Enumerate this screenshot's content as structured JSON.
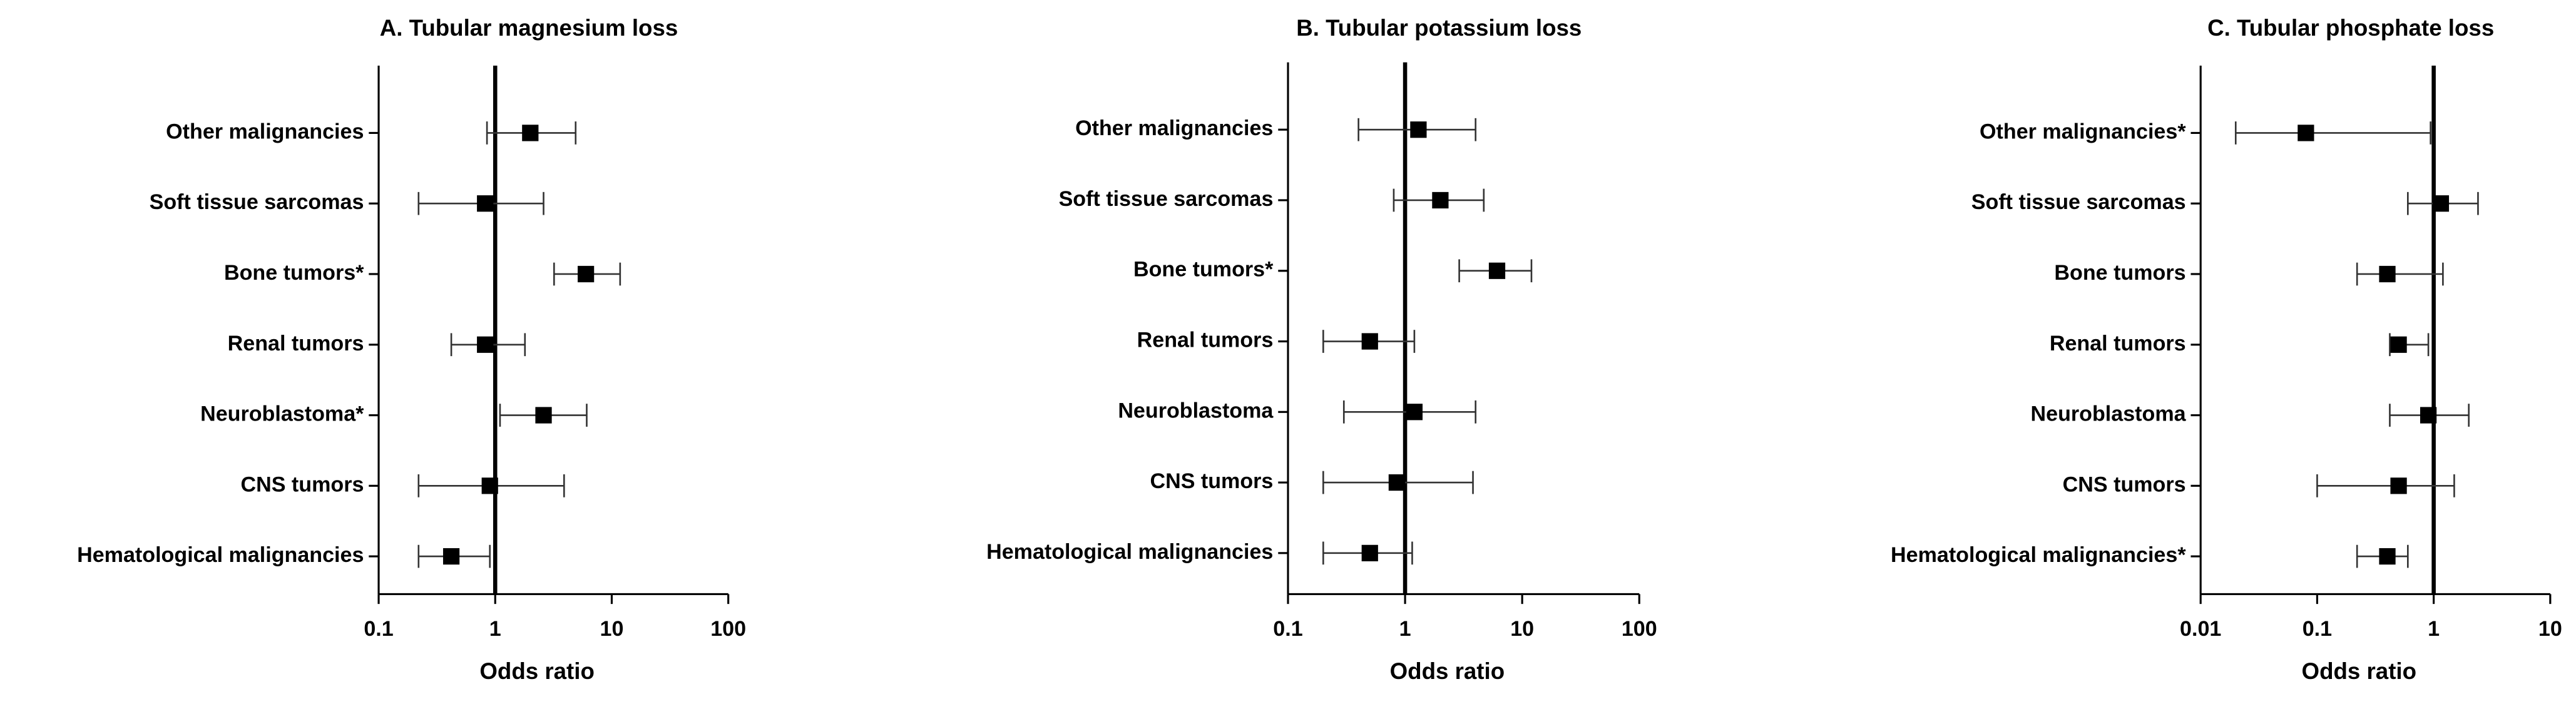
{
  "chart_data": [
    {
      "type": "forest",
      "title": "A. Tubular magnesium loss",
      "xlabel": "Odds ratio",
      "categories": [
        "Other malignancies",
        "Soft tissue sarcomas",
        "Bone tumors*",
        "Renal tumors",
        "Neuroblastoma*",
        "CNS tumors",
        "Hematological malignancies"
      ],
      "values": [
        2.0,
        0.82,
        6.0,
        0.82,
        2.6,
        0.9,
        0.42
      ],
      "lower": [
        0.85,
        0.22,
        3.2,
        0.42,
        1.1,
        0.22,
        0.22
      ],
      "upper": [
        4.9,
        2.6,
        11.8,
        1.8,
        6.1,
        3.9,
        0.9
      ],
      "xlim": [
        0.1,
        100
      ],
      "xticks": [
        0.1,
        1,
        10,
        100
      ],
      "log_x": true,
      "reference_line": 1,
      "color": "#000000"
    },
    {
      "type": "forest",
      "title": "B. Tubular potassium loss",
      "xlabel": "Odds ratio",
      "categories": [
        "Other malignancies",
        "Soft tissue sarcomas",
        "Bone tumors*",
        "Renal tumors",
        "Neuroblastoma",
        "CNS tumors",
        "Hematological malignancies"
      ],
      "values": [
        1.3,
        2.0,
        6.1,
        0.5,
        1.2,
        0.85,
        0.5
      ],
      "lower": [
        0.4,
        0.8,
        2.9,
        0.2,
        0.3,
        0.2,
        0.2
      ],
      "upper": [
        4.0,
        4.7,
        12,
        1.2,
        4.0,
        3.8,
        1.15
      ],
      "xlim": [
        0.1,
        100
      ],
      "xticks": [
        0.1,
        1,
        10,
        100
      ],
      "log_x": true,
      "reference_line": 1,
      "color": "#000000"
    },
    {
      "type": "forest",
      "title": "C. Tubular phosphate loss",
      "xlabel": "Odds ratio",
      "categories": [
        "Other malignancies*",
        "Soft tissue sarcomas",
        "Bone tumors",
        "Renal tumors",
        "Neuroblastoma",
        "CNS tumors",
        "Hematological malignancies*"
      ],
      "values": [
        0.08,
        1.15,
        0.4,
        0.5,
        0.9,
        0.5,
        0.4
      ],
      "lower": [
        0.02,
        0.6,
        0.22,
        0.42,
        0.42,
        0.1,
        0.22
      ],
      "upper": [
        0.94,
        2.4,
        1.2,
        0.9,
        2.0,
        1.5,
        0.6
      ],
      "xlim": [
        0.01,
        10
      ],
      "xticks": [
        0.01,
        0.1,
        1,
        10
      ],
      "log_x": true,
      "reference_line": 1,
      "color": "#000000"
    }
  ]
}
